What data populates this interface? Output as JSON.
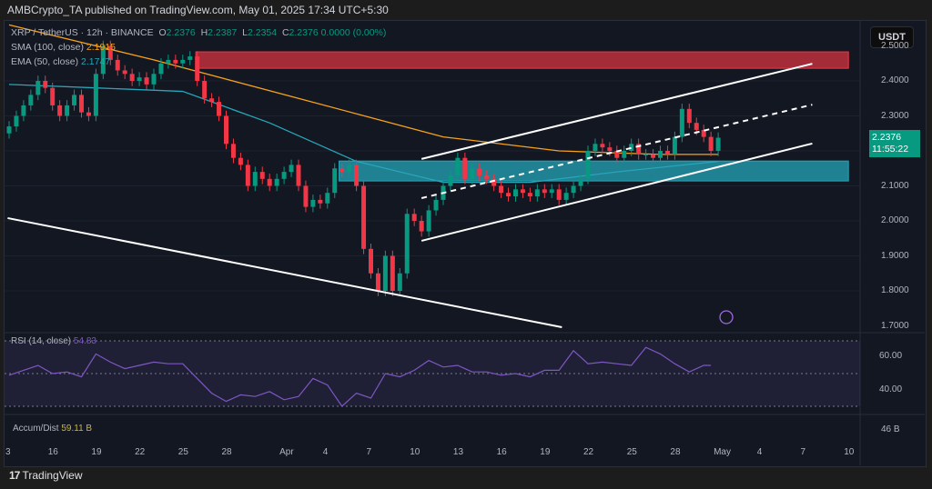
{
  "header": {
    "published": "AMBCrypto_TA published on TradingView.com, May 01, 2025 17:34 UTC+5:30"
  },
  "legend": {
    "symbol": "XRP / TetherUS · 12h · BINANCE",
    "o_label": "O",
    "o": "2.2376",
    "h_label": "H",
    "h": "2.2387",
    "l_label": "L",
    "l": "2.2354",
    "c_label": "C",
    "c": "2.2376",
    "change": "0.0000 (0.00%)",
    "sma_label": "SMA (100, close)",
    "sma_value": "2.1915",
    "ema_label": "EMA (50, close)",
    "ema_value": "2.1747",
    "rsi_label": "RSI (14, close)",
    "rsi_value": "54.83",
    "ad_label": "Accum/Dist",
    "ad_value": "59.11 B"
  },
  "currency": "USDT",
  "price_tag": {
    "price": "2.2376",
    "countdown": "11:55:22"
  },
  "price_axis": [
    "2.5000",
    "2.4000",
    "2.3000",
    "2.1000",
    "2.0000",
    "1.9000",
    "1.8000",
    "1.7000"
  ],
  "rsi_axis": [
    "60.00",
    "40.00"
  ],
  "ad_axis": "46 B",
  "date_axis": [
    "3",
    "16",
    "19",
    "22",
    "25",
    "28",
    "Apr",
    "4",
    "7",
    "10",
    "13",
    "16",
    "19",
    "22",
    "25",
    "28",
    "May",
    "4",
    "7",
    "10"
  ],
  "footer": {
    "brand": "TradingView"
  },
  "colors": {
    "up": "#089981",
    "down": "#f23645",
    "sma": "#f7a21b",
    "ema": "#26a6b8",
    "rsi": "#7e57c2",
    "bg": "#131722"
  },
  "chart_data": {
    "type": "candlestick",
    "interval": "12h",
    "start": "Mar 13",
    "ylim": [
      1.7,
      2.5
    ],
    "closes": [
      2.27,
      2.3,
      2.33,
      2.36,
      2.4,
      2.38,
      2.33,
      2.3,
      2.33,
      2.36,
      2.31,
      2.3,
      2.42,
      2.5,
      2.46,
      2.43,
      2.42,
      2.4,
      2.41,
      2.39,
      2.42,
      2.45,
      2.46,
      2.45,
      2.46,
      2.47,
      2.4,
      2.35,
      2.34,
      2.3,
      2.22,
      2.18,
      2.16,
      2.1,
      2.14,
      2.12,
      2.1,
      2.12,
      2.14,
      2.16,
      2.1,
      2.04,
      2.06,
      2.05,
      2.08,
      2.15,
      2.14,
      2.16,
      2.1,
      1.92,
      1.85,
      1.8,
      1.9,
      1.8,
      1.85,
      2.02,
      2.0,
      1.97,
      2.03,
      2.06,
      2.1,
      2.13,
      2.18,
      2.12,
      2.15,
      2.13,
      2.12,
      2.1,
      2.08,
      2.07,
      2.09,
      2.08,
      2.07,
      2.09,
      2.08,
      2.09,
      2.06,
      2.08,
      2.1,
      2.12,
      2.2,
      2.22,
      2.21,
      2.2,
      2.18,
      2.2,
      2.22,
      2.19,
      2.19,
      2.18,
      2.2,
      2.19,
      2.24,
      2.32,
      2.28,
      2.26,
      2.24,
      2.2,
      2.2376
    ],
    "sma": [
      [
        0,
        2.56
      ],
      [
        10,
        2.46
      ],
      [
        20,
        2.35
      ],
      [
        30,
        2.24
      ],
      [
        38,
        2.2
      ],
      [
        45,
        2.19
      ],
      [
        49,
        2.19
      ]
    ],
    "ema": [
      [
        0,
        2.39
      ],
      [
        6,
        2.38
      ],
      [
        12,
        2.37
      ],
      [
        18,
        2.28
      ],
      [
        24,
        2.17
      ],
      [
        30,
        2.11
      ],
      [
        36,
        2.11
      ],
      [
        42,
        2.14
      ],
      [
        49,
        2.17
      ]
    ],
    "rsi": [
      [
        0,
        49
      ],
      [
        1,
        52
      ],
      [
        2,
        55
      ],
      [
        3,
        50
      ],
      [
        4,
        51
      ],
      [
        5,
        48
      ],
      [
        6,
        62
      ],
      [
        7,
        57
      ],
      [
        8,
        53
      ],
      [
        9,
        55
      ],
      [
        10,
        57
      ],
      [
        11,
        56
      ],
      [
        12,
        56
      ],
      [
        13,
        47
      ],
      [
        14,
        38
      ],
      [
        15,
        33
      ],
      [
        16,
        37
      ],
      [
        17,
        36
      ],
      [
        18,
        39
      ],
      [
        19,
        34
      ],
      [
        20,
        36
      ],
      [
        21,
        47
      ],
      [
        22,
        43
      ],
      [
        23,
        30
      ],
      [
        24,
        38
      ],
      [
        25,
        35
      ],
      [
        26,
        50
      ],
      [
        27,
        48
      ],
      [
        28,
        52
      ],
      [
        29,
        58
      ],
      [
        30,
        54
      ],
      [
        31,
        55
      ],
      [
        32,
        51
      ],
      [
        33,
        51
      ],
      [
        34,
        49
      ],
      [
        35,
        50
      ],
      [
        36,
        48
      ],
      [
        37,
        52
      ],
      [
        38,
        52
      ],
      [
        39,
        64
      ],
      [
        40,
        56
      ],
      [
        41,
        57
      ],
      [
        42,
        56
      ],
      [
        43,
        55
      ],
      [
        44,
        66
      ],
      [
        45,
        62
      ],
      [
        46,
        56
      ],
      [
        47,
        51
      ],
      [
        48,
        55
      ],
      [
        48.5,
        55
      ]
    ],
    "rsi_ylim": [
      0,
      100
    ],
    "annotations": {
      "descending_line": [
        [
          -0.1,
          2.008
        ],
        [
          38.2,
          1.696
        ]
      ],
      "channel_upper": [
        [
          28.5,
          2.177
        ],
        [
          55.5,
          2.449
        ]
      ],
      "channel_mid": [
        [
          28.5,
          2.065
        ],
        [
          55.5,
          2.332
        ]
      ],
      "channel_lower": [
        [
          28.5,
          1.943
        ],
        [
          55.5,
          2.221
        ]
      ],
      "resistance_zone": {
        "from_day": 12.9,
        "to_day": 58,
        "price": [
          2.436,
          2.483
        ]
      },
      "support_zone": {
        "from_day": 22.8,
        "to_day": 58,
        "price": [
          2.114,
          2.171
        ]
      }
    }
  }
}
